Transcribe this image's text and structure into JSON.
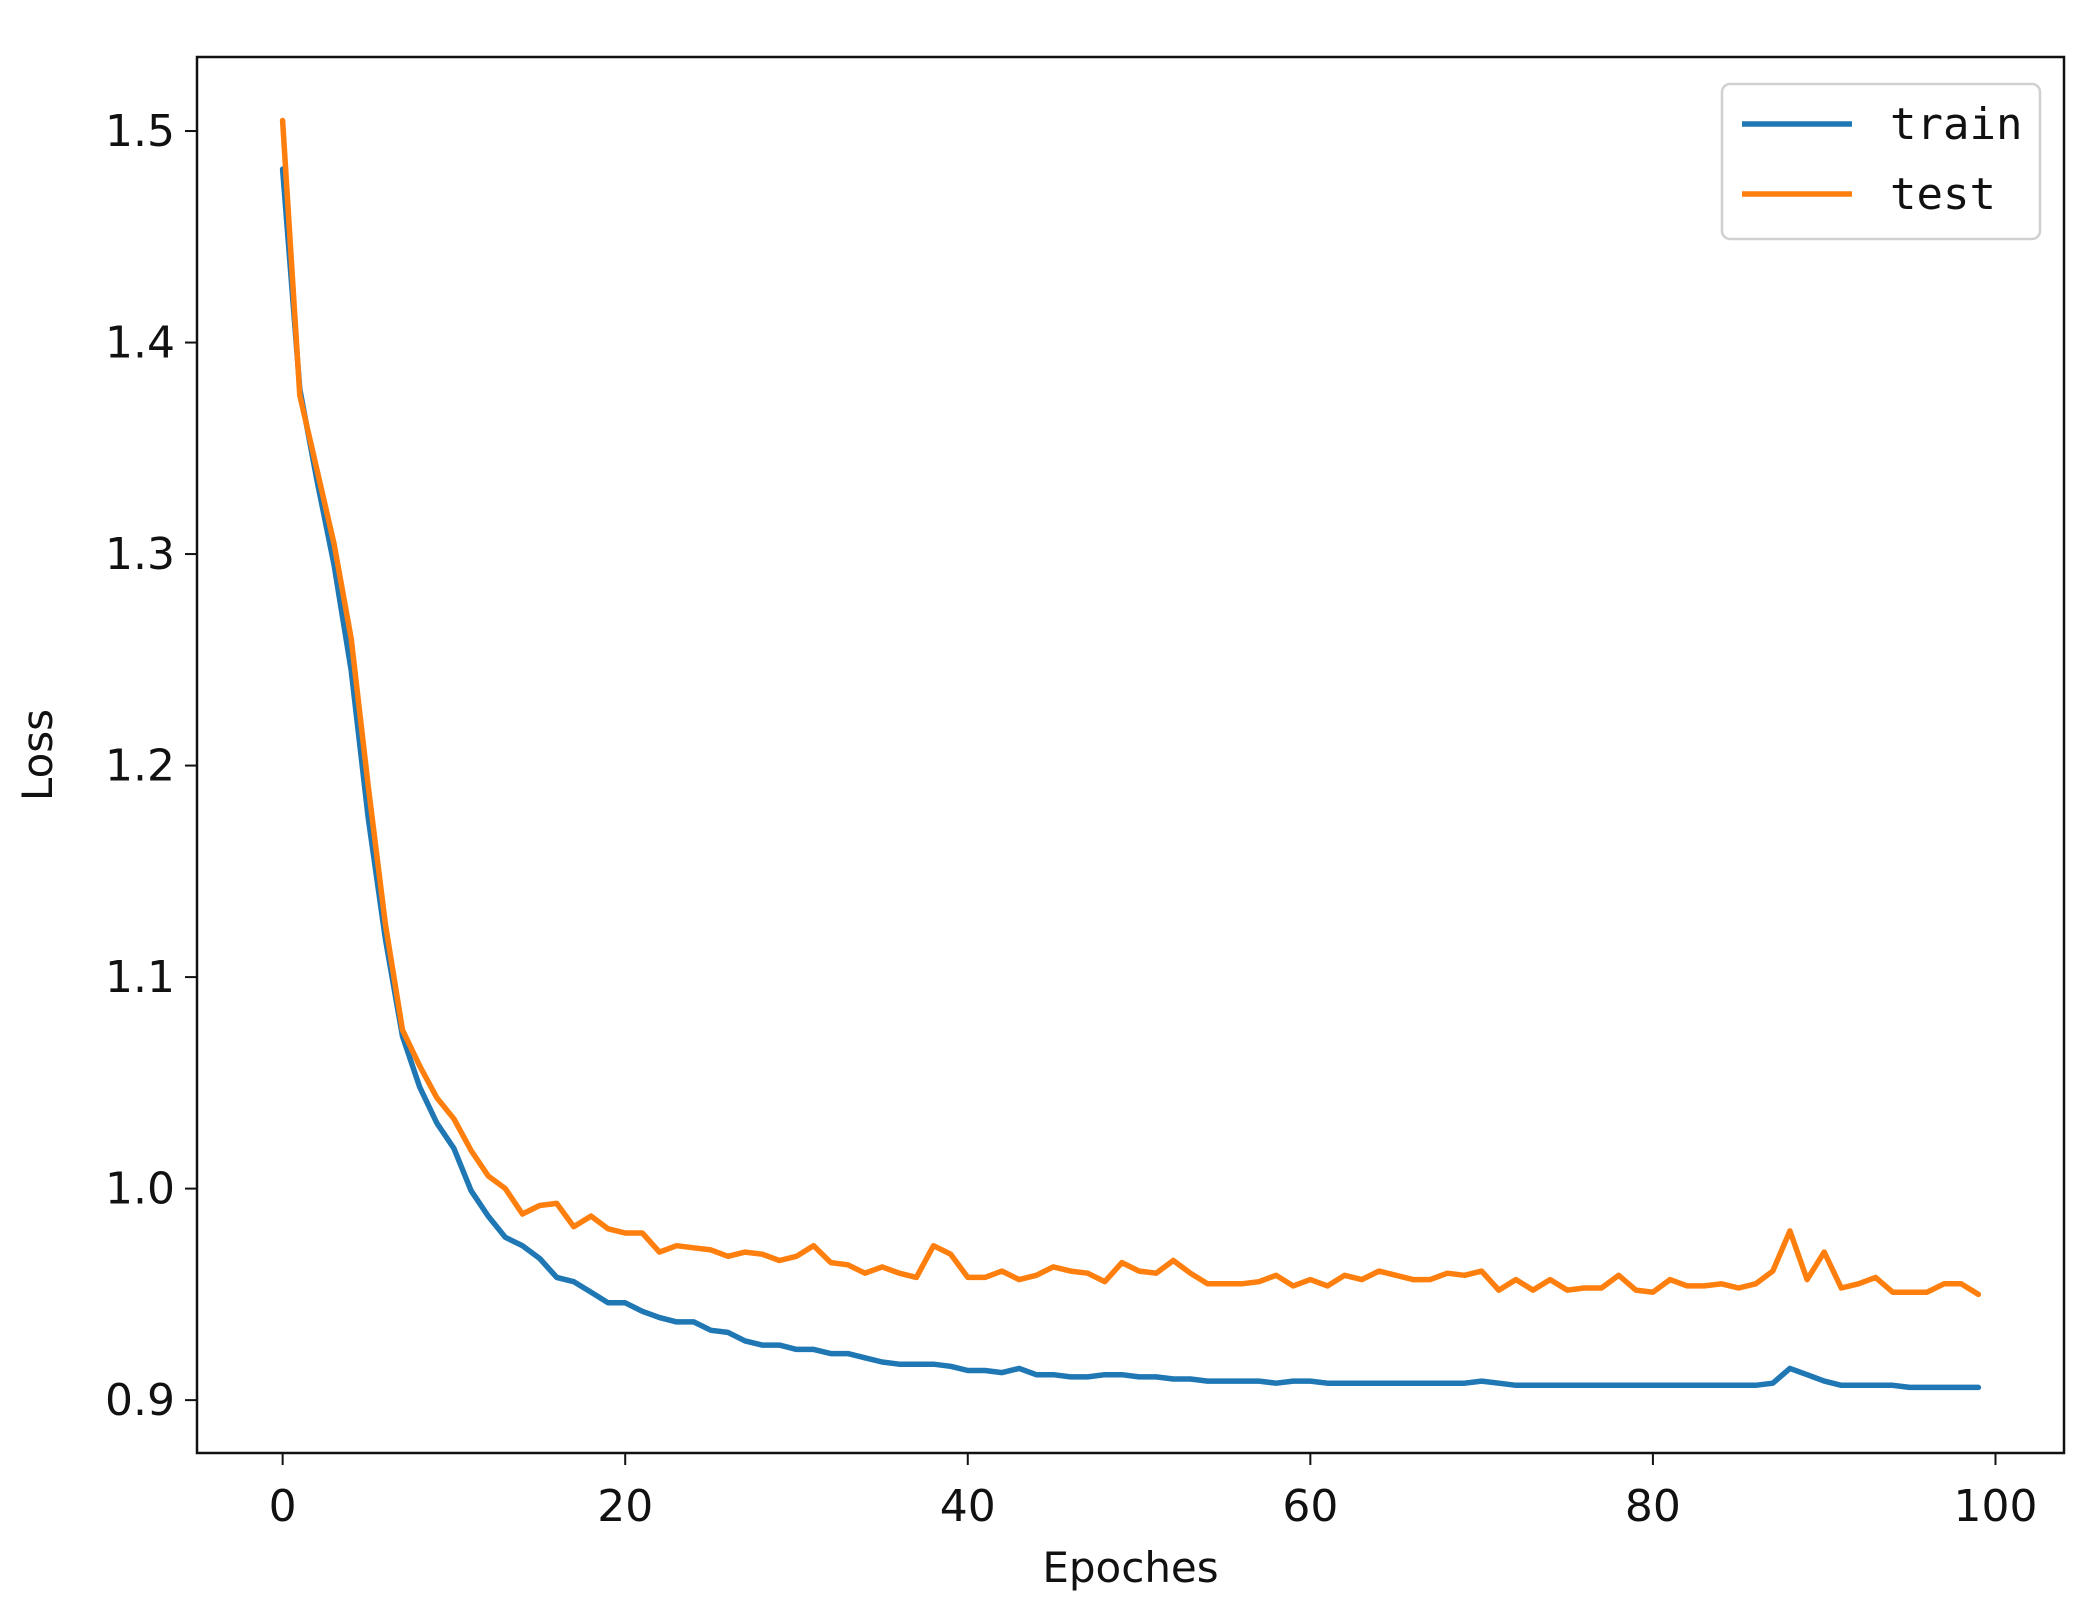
{
  "chart_data": {
    "type": "line",
    "title": "",
    "xlabel": "Epoches",
    "ylabel": "Loss",
    "xlim": [
      -5,
      104
    ],
    "ylim": [
      0.875,
      1.535
    ],
    "xticks": [
      0,
      20,
      40,
      60,
      80,
      100
    ],
    "xtick_labels": [
      "0",
      "20",
      "40",
      "60",
      "80",
      "100"
    ],
    "yticks": [
      0.9,
      1.0,
      1.1,
      1.2,
      1.3,
      1.4,
      1.5
    ],
    "ytick_labels": [
      "0.9",
      "1.0",
      "1.1",
      "1.2",
      "1.3",
      "1.4",
      "1.5"
    ],
    "grid": false,
    "legend_position": "top-right",
    "x": [
      0,
      1,
      2,
      3,
      4,
      5,
      6,
      7,
      8,
      9,
      10,
      11,
      12,
      13,
      14,
      15,
      16,
      17,
      18,
      19,
      20,
      21,
      22,
      23,
      24,
      25,
      26,
      27,
      28,
      29,
      30,
      31,
      32,
      33,
      34,
      35,
      36,
      37,
      38,
      39,
      40,
      41,
      42,
      43,
      44,
      45,
      46,
      47,
      48,
      49,
      50,
      51,
      52,
      53,
      54,
      55,
      56,
      57,
      58,
      59,
      60,
      61,
      62,
      63,
      64,
      65,
      66,
      67,
      68,
      69,
      70,
      71,
      72,
      73,
      74,
      75,
      76,
      77,
      78,
      79,
      80,
      81,
      82,
      83,
      84,
      85,
      86,
      87,
      88,
      89,
      90,
      91,
      92,
      93,
      94,
      95,
      96,
      97,
      98,
      99
    ],
    "series": [
      {
        "name": "train",
        "color": "#1f77b4",
        "values": [
          1.482,
          1.378,
          1.335,
          1.295,
          1.245,
          1.175,
          1.118,
          1.072,
          1.048,
          1.031,
          1.019,
          0.999,
          0.987,
          0.977,
          0.973,
          0.967,
          0.958,
          0.956,
          0.951,
          0.946,
          0.946,
          0.942,
          0.939,
          0.937,
          0.937,
          0.933,
          0.932,
          0.928,
          0.926,
          0.926,
          0.924,
          0.924,
          0.922,
          0.922,
          0.92,
          0.918,
          0.917,
          0.917,
          0.917,
          0.916,
          0.914,
          0.914,
          0.913,
          0.915,
          0.912,
          0.912,
          0.911,
          0.911,
          0.912,
          0.912,
          0.911,
          0.911,
          0.91,
          0.91,
          0.909,
          0.909,
          0.909,
          0.909,
          0.908,
          0.909,
          0.909,
          0.908,
          0.908,
          0.908,
          0.908,
          0.908,
          0.908,
          0.908,
          0.908,
          0.908,
          0.909,
          0.908,
          0.907,
          0.907,
          0.907,
          0.907,
          0.907,
          0.907,
          0.907,
          0.907,
          0.907,
          0.907,
          0.907,
          0.907,
          0.907,
          0.907,
          0.907,
          0.908,
          0.915,
          0.912,
          0.909,
          0.907,
          0.907,
          0.907,
          0.907,
          0.906,
          0.906,
          0.906,
          0.906,
          0.906
        ]
      },
      {
        "name": "test",
        "color": "#ff7f0e",
        "values": [
          1.505,
          1.375,
          1.34,
          1.305,
          1.26,
          1.19,
          1.125,
          1.075,
          1.058,
          1.043,
          1.033,
          1.018,
          1.006,
          1.0,
          0.988,
          0.992,
          0.993,
          0.982,
          0.987,
          0.981,
          0.979,
          0.979,
          0.97,
          0.973,
          0.972,
          0.971,
          0.968,
          0.97,
          0.969,
          0.966,
          0.968,
          0.973,
          0.965,
          0.964,
          0.96,
          0.963,
          0.96,
          0.958,
          0.973,
          0.969,
          0.958,
          0.958,
          0.961,
          0.957,
          0.959,
          0.963,
          0.961,
          0.96,
          0.956,
          0.965,
          0.961,
          0.96,
          0.966,
          0.96,
          0.955,
          0.955,
          0.955,
          0.956,
          0.959,
          0.954,
          0.957,
          0.954,
          0.959,
          0.957,
          0.961,
          0.959,
          0.957,
          0.957,
          0.96,
          0.959,
          0.961,
          0.952,
          0.957,
          0.952,
          0.957,
          0.952,
          0.953,
          0.953,
          0.959,
          0.952,
          0.951,
          0.957,
          0.954,
          0.954,
          0.955,
          0.953,
          0.955,
          0.961,
          0.98,
          0.957,
          0.97,
          0.953,
          0.955,
          0.958,
          0.951,
          0.951,
          0.951,
          0.955,
          0.955,
          0.95
        ]
      }
    ]
  }
}
